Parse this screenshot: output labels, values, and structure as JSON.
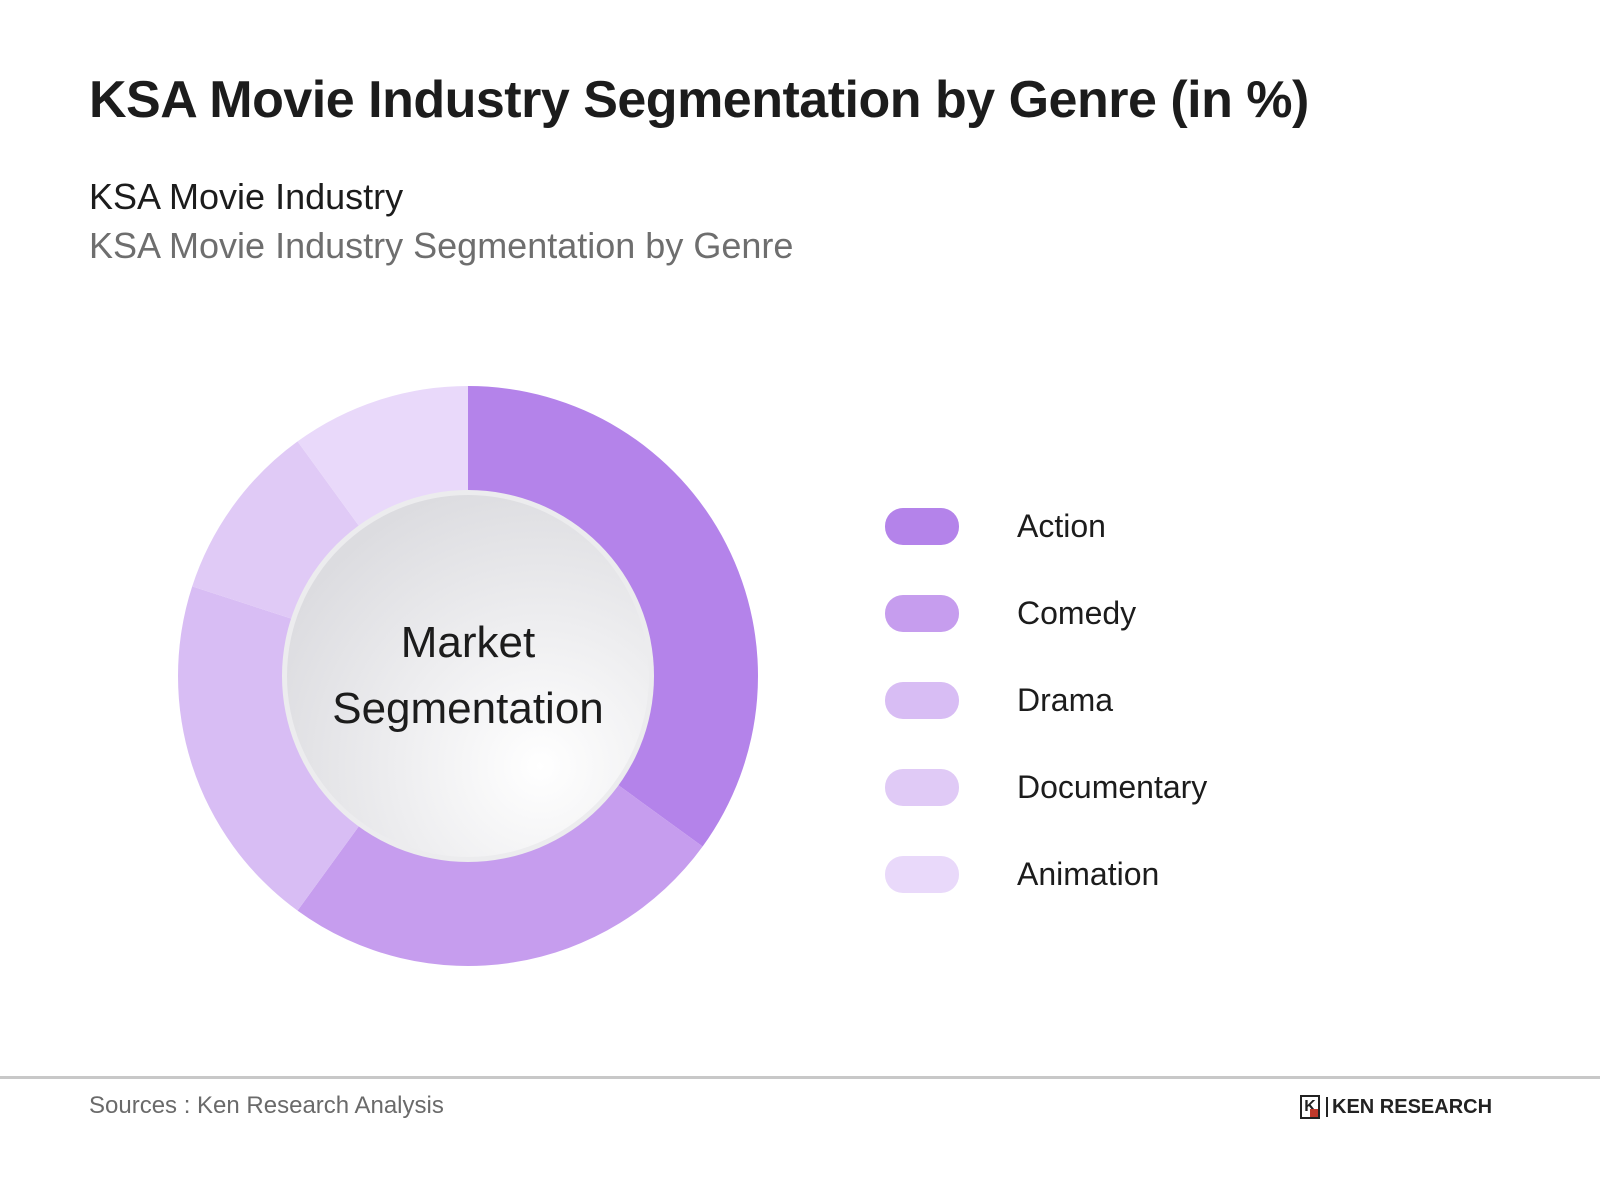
{
  "header": {
    "title": "KSA Movie Industry Segmentation by Genre (in %)",
    "subtitle": "KSA Movie Industry",
    "subtitle2": "KSA Movie Industry Segmentation by Genre"
  },
  "chart": {
    "center_line1": "Market",
    "center_line2": "Segmentation"
  },
  "legend": [
    {
      "label": "Action",
      "color": "#b483ea"
    },
    {
      "label": "Comedy",
      "color": "#c69dee"
    },
    {
      "label": "Drama",
      "color": "#d8bdf4"
    },
    {
      "label": "Documentary",
      "color": "#e0caf6"
    },
    {
      "label": "Animation",
      "color": "#e9d9fa"
    }
  ],
  "footer": {
    "source": "Sources : Ken Research Analysis",
    "logo_mark": "K",
    "logo_text": "KEN RESEARCH"
  },
  "chart_data": {
    "type": "pie",
    "title": "KSA Movie Industry Segmentation by Genre (in %)",
    "subtitle": "KSA Movie Industry Segmentation by Genre",
    "donut": true,
    "center_text": "Market Segmentation",
    "categories": [
      "Action",
      "Comedy",
      "Drama",
      "Documentary",
      "Animation"
    ],
    "values": [
      35,
      25,
      20,
      10,
      10
    ],
    "colors": [
      "#b483ea",
      "#c69dee",
      "#d8bdf4",
      "#e0caf6",
      "#e9d9fa"
    ],
    "legend_position": "right",
    "data_labels_shown": false,
    "source": "Sources : Ken Research Analysis"
  }
}
